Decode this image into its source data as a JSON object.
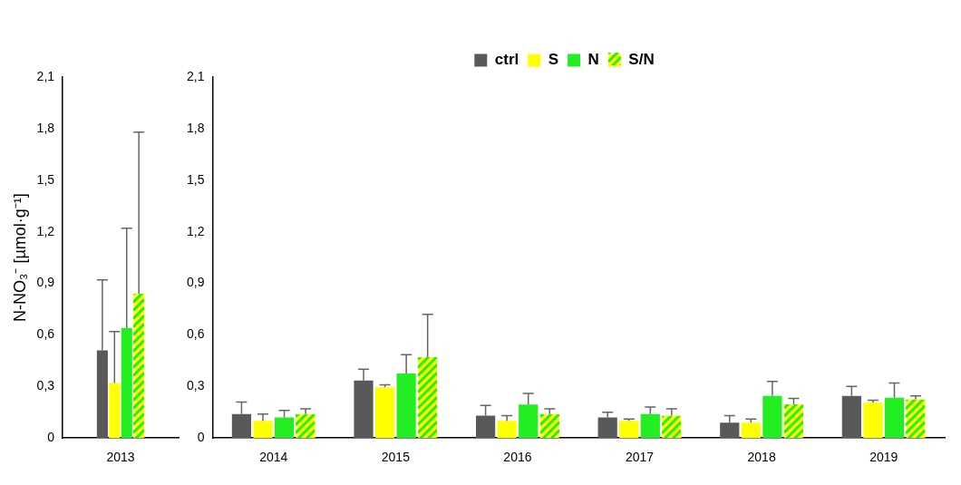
{
  "chart_data": [
    {
      "type": "bar",
      "ylabel": "N-NO₃⁻ [µmol·g⁻¹]",
      "categories": [
        "2013"
      ],
      "ylim": [
        0,
        2.1
      ],
      "yticks": [
        0,
        {
          "value": 0.3,
          "label": "0,3"
        },
        {
          "value": 0.6,
          "label": "0,6"
        },
        {
          "value": 0.9,
          "label": "0,9"
        },
        {
          "value": 1.2,
          "label": "1,2"
        },
        {
          "value": 1.5,
          "label": "1,5"
        },
        {
          "value": 1.8,
          "label": "1,8"
        },
        {
          "value": 2.1,
          "label": "2,1"
        }
      ],
      "grid": false,
      "legend": false,
      "series": [
        {
          "color": "#595959",
          "values": [
            0.51
          ],
          "errors": [
            [
              0.51,
              0.92
            ]
          ]
        },
        {
          "color": "#ffff00",
          "values": [
            0.32
          ],
          "errors": [
            [
              0.32,
              0.62
            ]
          ]
        },
        {
          "color": "#22ee22",
          "values": [
            0.64
          ],
          "errors": [
            [
              0.64,
              1.22
            ]
          ]
        },
        {
          "color": "#ffff00",
          "values": [
            0.84
          ],
          "errors": [
            [
              0.84,
              1.78
            ]
          ]
        }
      ]
    },
    {
      "type": "bar",
      "categories": [
        "2014",
        "2015",
        "2016",
        "2017",
        "2018",
        "2019"
      ],
      "ylim": [
        0,
        2.1
      ],
      "yticks": [
        0,
        {
          "value": 0.3,
          "label": "0,3"
        },
        {
          "value": 0.6,
          "label": "0,6"
        },
        {
          "value": 0.9,
          "label": "0,9"
        },
        {
          "value": 1.2,
          "label": "1,2"
        },
        {
          "value": 1.5,
          "label": "1,5"
        },
        {
          "value": 1.8,
          "label": "1,8"
        },
        {
          "value": 2.1,
          "label": "2,1"
        }
      ],
      "grid": false,
      "legend": "top",
      "series": [
        {
          "name": "ctrl",
          "color": "#595959",
          "values": [
            0.14,
            0.335,
            0.13,
            0.12,
            0.09,
            0.245
          ],
          "errors": [
            [
              0.14,
              0.21
            ],
            [
              0.335,
              0.4
            ],
            [
              0.13,
              0.19
            ],
            [
              0.12,
              0.15
            ],
            [
              0.09,
              0.13
            ],
            [
              0.245,
              0.3
            ]
          ]
        },
        {
          "name": "S",
          "color": "#ffff00",
          "values": [
            0.1,
            0.295,
            0.1,
            0.1,
            0.09,
            0.205
          ],
          "errors": [
            [
              0.1,
              0.14
            ],
            [
              0.295,
              0.31
            ],
            [
              0.1,
              0.13
            ],
            [
              0.1,
              0.11
            ],
            [
              0.09,
              0.11
            ],
            [
              0.205,
              0.22
            ]
          ]
        },
        {
          "name": "N",
          "color": "#22ee22",
          "values": [
            0.12,
            0.375,
            0.195,
            0.14,
            0.245,
            0.235
          ],
          "errors": [
            [
              0.12,
              0.16
            ],
            [
              0.375,
              0.485
            ],
            [
              0.195,
              0.26
            ],
            [
              0.14,
              0.18
            ],
            [
              0.245,
              0.33
            ],
            [
              0.235,
              0.32
            ]
          ]
        },
        {
          "name": "S/N",
          "color": "#ffff00",
          "values": [
            0.14,
            0.47,
            0.14,
            0.13,
            0.195,
            0.225
          ],
          "errors": [
            [
              0.14,
              0.17
            ],
            [
              0.47,
              0.72
            ],
            [
              0.14,
              0.17
            ],
            [
              0.13,
              0.17
            ],
            [
              0.195,
              0.23
            ],
            [
              0.225,
              0.245
            ]
          ]
        }
      ]
    }
  ]
}
